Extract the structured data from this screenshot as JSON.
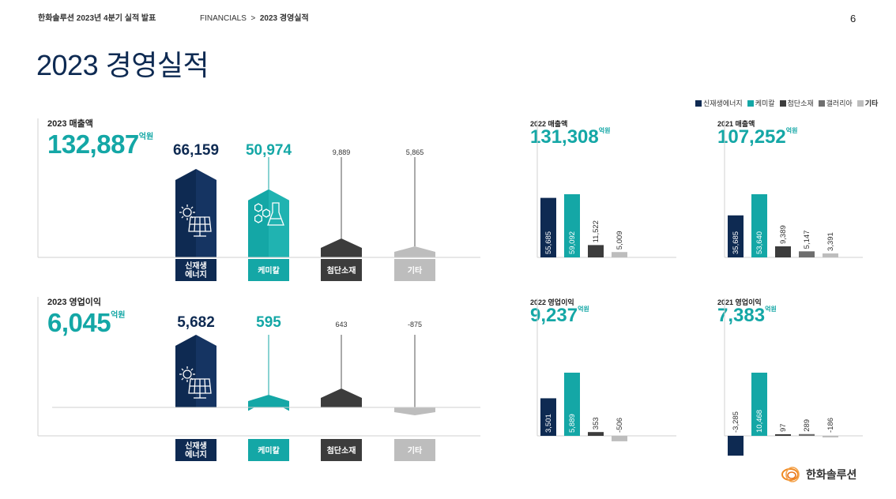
{
  "header": {
    "doc_title": "한화솔루션 2023년 4분기 실적 발표",
    "breadcrumb_section": "FINANCIALS",
    "breadcrumb_sep": ">",
    "breadcrumb_page": "2023 경영실적",
    "page_number": "6"
  },
  "page_title": "2023 경영실적",
  "unit": "억원",
  "legend": [
    {
      "label": "신재생에너지",
      "color": "#0e2a52"
    },
    {
      "label": "케미칼",
      "color": "#14a7a6"
    },
    {
      "label": "첨단소재",
      "color": "#3c3c3c"
    },
    {
      "label": "갤러리아",
      "color": "#6e6e6e"
    },
    {
      "label": "기타",
      "color": "#bdbdbd"
    }
  ],
  "revenue_2023": {
    "label": "2023 매출액",
    "total": "132,887",
    "categories": [
      "신재생\n에너지",
      "케미칼",
      "첨단소재",
      "기타"
    ],
    "value_labels": [
      "66,159",
      "50,974",
      "9,889",
      "5,865"
    ]
  },
  "op_2023": {
    "label": "2023 영업이익",
    "total": "6,045",
    "categories": [
      "신재생\n에너지",
      "케미칼",
      "첨단소재",
      "기타"
    ],
    "value_labels": [
      "5,682",
      "595",
      "643",
      "-875"
    ]
  },
  "revenue_2022": {
    "label": "2022 매출액",
    "total": "131,308"
  },
  "revenue_2021": {
    "label": "2021 매출액",
    "total": "107,252"
  },
  "op_2022": {
    "label": "2022 영업이익",
    "total": "9,237"
  },
  "op_2021": {
    "label": "2021 영업이익",
    "total": "7,383"
  },
  "logo_text": "한화솔루션",
  "chart_data": [
    {
      "type": "bar",
      "title": "2023 매출액",
      "categories": [
        "신재생에너지",
        "케미칼",
        "첨단소재",
        "기타"
      ],
      "values": [
        66159,
        50974,
        9889,
        5865
      ],
      "colors": [
        "#0e2a52",
        "#14a7a6",
        "#3c3c3c",
        "#bdbdbd"
      ]
    },
    {
      "type": "bar",
      "title": "2023 영업이익",
      "categories": [
        "신재생에너지",
        "케미칼",
        "첨단소재",
        "기타"
      ],
      "values": [
        5682,
        595,
        643,
        -875
      ],
      "colors": [
        "#0e2a52",
        "#14a7a6",
        "#3c3c3c",
        "#bdbdbd"
      ]
    },
    {
      "type": "bar",
      "title": "2022 매출액",
      "categories": [
        "신재생에너지",
        "케미칼",
        "첨단소재",
        "기타"
      ],
      "values": [
        55685,
        59092,
        11522,
        5009
      ],
      "value_labels": [
        "55,685",
        "59,092",
        "11,522",
        "5,009"
      ],
      "colors": [
        "#0e2a52",
        "#14a7a6",
        "#3c3c3c",
        "#bdbdbd"
      ]
    },
    {
      "type": "bar",
      "title": "2021 매출액",
      "categories": [
        "신재생에너지",
        "케미칼",
        "첨단소재",
        "갤러리아",
        "기타"
      ],
      "values": [
        35685,
        53640,
        9389,
        5147,
        3391
      ],
      "value_labels": [
        "35,685",
        "53,640",
        "9,389",
        "5,147",
        "3,391"
      ],
      "colors": [
        "#0e2a52",
        "#14a7a6",
        "#3c3c3c",
        "#6e6e6e",
        "#bdbdbd"
      ]
    },
    {
      "type": "bar",
      "title": "2022 영업이익",
      "categories": [
        "신재생에너지",
        "케미칼",
        "첨단소재",
        "기타"
      ],
      "values": [
        3501,
        5889,
        353,
        -506
      ],
      "value_labels": [
        "3,501",
        "5,889",
        "353",
        "-506"
      ],
      "colors": [
        "#0e2a52",
        "#14a7a6",
        "#3c3c3c",
        "#bdbdbd"
      ]
    },
    {
      "type": "bar",
      "title": "2021 영업이익",
      "categories": [
        "신재생에너지",
        "케미칼",
        "첨단소재",
        "갤러리아",
        "기타"
      ],
      "values": [
        -3285,
        10468,
        97,
        289,
        -186
      ],
      "value_labels": [
        "-3,285",
        "10,468",
        "97",
        "289",
        "-186"
      ],
      "colors": [
        "#0e2a52",
        "#14a7a6",
        "#3c3c3c",
        "#6e6e6e",
        "#bdbdbd"
      ]
    }
  ]
}
